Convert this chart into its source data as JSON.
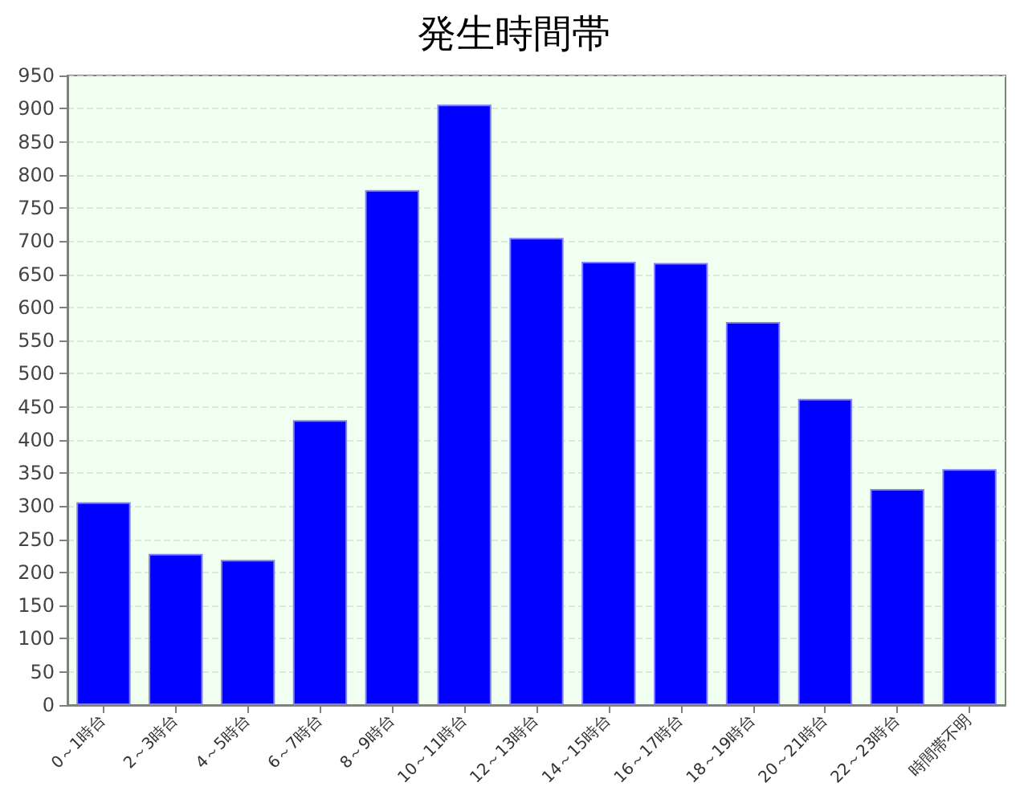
{
  "chart_data": {
    "type": "bar",
    "title": "発生時間帯",
    "categories": [
      "0～1時台",
      "2～3時台",
      "4～5時台",
      "6～7時台",
      "8～9時台",
      "10～11時台",
      "12～13時台",
      "14～15時台",
      "16～17時台",
      "18～19時台",
      "20～21時台",
      "22～23時台",
      "時間帯不明"
    ],
    "values": [
      306,
      228,
      219,
      430,
      777,
      906,
      705,
      669,
      667,
      578,
      462,
      326,
      356
    ],
    "color": "#0000ff",
    "ylim": [
      0,
      950
    ],
    "yticks": [
      0,
      50,
      100,
      150,
      200,
      250,
      300,
      350,
      400,
      450,
      500,
      550,
      600,
      650,
      700,
      750,
      800,
      850,
      900,
      950
    ],
    "grid": "y"
  }
}
